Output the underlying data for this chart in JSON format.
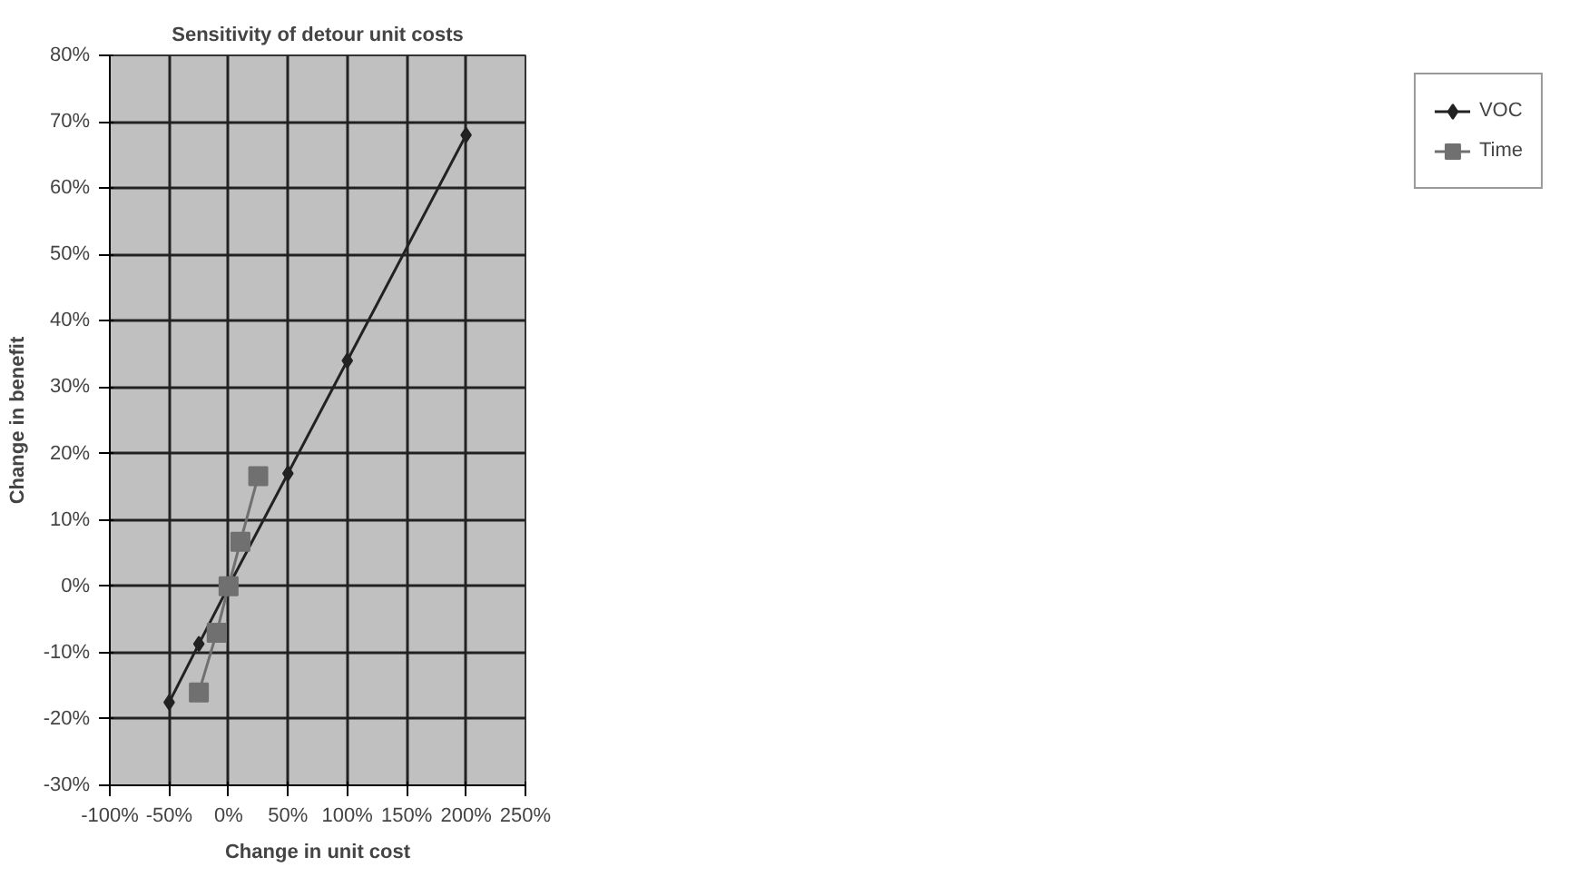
{
  "chart_data": {
    "type": "line",
    "title": "Sensitivity of detour unit costs",
    "xlabel": "Change in unit cost",
    "ylabel": "Change in benefit",
    "xlim": [
      -1,
      2.5
    ],
    "xticks": [
      {
        "value": -1,
        "label": "-100%"
      },
      {
        "value": -0.5,
        "label": "-50%"
      },
      {
        "value": 0,
        "label": "0%"
      },
      {
        "value": 0.5,
        "label": "50%"
      },
      {
        "value": 1,
        "label": "100%"
      },
      {
        "value": 1.5,
        "label": "150%"
      },
      {
        "value": 2,
        "label": "200%"
      },
      {
        "value": 2.5,
        "label": "250%"
      }
    ],
    "ylim": [
      -0.3,
      0.8
    ],
    "yticks": [
      {
        "value": -0.3,
        "label": "-30%"
      },
      {
        "value": -0.2,
        "label": "-20%"
      },
      {
        "value": -0.1,
        "label": "-10%"
      },
      {
        "value": 0,
        "label": "0%"
      },
      {
        "value": 0.1,
        "label": "10%"
      },
      {
        "value": 0.2,
        "label": "20%"
      },
      {
        "value": 0.3,
        "label": "30%"
      },
      {
        "value": 0.4,
        "label": "40%"
      },
      {
        "value": 0.5,
        "label": "50%"
      },
      {
        "value": 0.6,
        "label": "60%"
      },
      {
        "value": 0.7,
        "label": "70%"
      },
      {
        "value": 0.8,
        "label": "80%"
      }
    ],
    "grid": true,
    "legend": "right",
    "series": [
      {
        "name": "VOC",
        "color": "#222222",
        "marker": "diamond",
        "x": [
          -0.5,
          -0.25,
          0,
          0.5,
          1,
          2
        ],
        "values": [
          -0.175,
          -0.087,
          0,
          0.17,
          0.34,
          0.68
        ]
      },
      {
        "name": "Time",
        "color": "#707070",
        "marker": "square",
        "x": [
          -0.25,
          -0.1,
          0,
          0.1,
          0.25
        ],
        "values": [
          -0.16,
          -0.07,
          0,
          0.067,
          0.166
        ]
      }
    ]
  }
}
